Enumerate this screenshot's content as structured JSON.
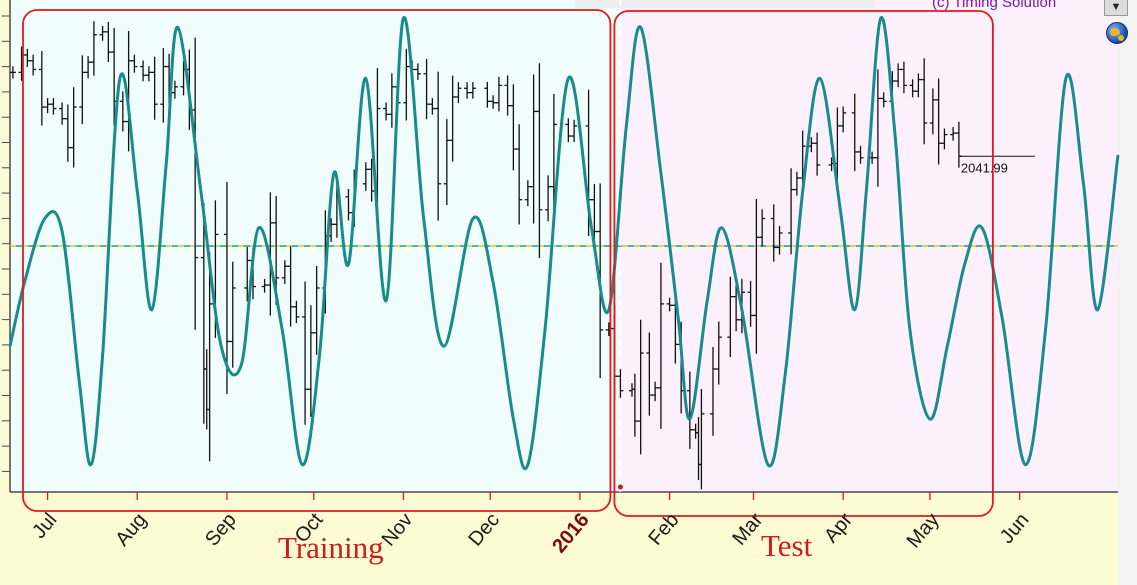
{
  "app": {
    "credit": "(c) Timing Solution",
    "dropdown_glyph": "▼",
    "globe_icon": "globe-icon"
  },
  "colors": {
    "training_bg": "#f1fcfc",
    "test_bg": "#fcf0fc",
    "future_bg": "#fcf0fc",
    "wave": "#188c8c",
    "price_bars": "#111111",
    "box": "#e0191d",
    "zero_line_a": "#d8c81c",
    "zero_line_b": "#1a9a9a",
    "axis": "#4a4a4a"
  },
  "annotations": {
    "training_label": "Training",
    "test_label": "Test",
    "last_price_label": "2041.99"
  },
  "chart_data": {
    "type": "line",
    "title": "",
    "xlabel": "",
    "ylabel": "",
    "x_range": [
      "2015-06-18",
      "2016-07-05"
    ],
    "split_date": "2016-01-15",
    "x_ticks": [
      {
        "date": "2015-07-01",
        "label": "Jul",
        "year": false
      },
      {
        "date": "2015-08-01",
        "label": "Aug",
        "year": false
      },
      {
        "date": "2015-09-01",
        "label": "Sep",
        "year": false
      },
      {
        "date": "2015-10-01",
        "label": "Oct",
        "year": false
      },
      {
        "date": "2015-11-01",
        "label": "Nov",
        "year": false
      },
      {
        "date": "2015-12-01",
        "label": "Dec",
        "year": false
      },
      {
        "date": "2016-01-01",
        "label": "2016",
        "year": true
      },
      {
        "date": "2016-02-01",
        "label": "Feb",
        "year": false
      },
      {
        "date": "2016-03-01",
        "label": "Mar",
        "year": false
      },
      {
        "date": "2016-04-01",
        "label": "Apr",
        "year": false
      },
      {
        "date": "2016-05-01",
        "label": "May",
        "year": false
      },
      {
        "date": "2016-06-01",
        "label": "Jun",
        "year": false
      }
    ],
    "wave_range": [
      -1.35,
      1.35
    ],
    "series": [
      {
        "type": "line",
        "points": [
          [
            "2015-06-18",
            -0.55
          ],
          [
            "2015-06-23",
            -0.2
          ],
          [
            "2015-06-30",
            0.15
          ],
          [
            "2015-07-06",
            0.08
          ],
          [
            "2015-07-12",
            -0.75
          ],
          [
            "2015-07-16",
            -1.2
          ],
          [
            "2015-07-20",
            -0.6
          ],
          [
            "2015-07-26",
            0.92
          ],
          [
            "2015-08-01",
            0.3
          ],
          [
            "2015-08-06",
            -0.35
          ],
          [
            "2015-08-11",
            0.45
          ],
          [
            "2015-08-15",
            1.2
          ],
          [
            "2015-08-23",
            0.3
          ],
          [
            "2015-08-30",
            -0.55
          ],
          [
            "2015-09-06",
            -0.65
          ],
          [
            "2015-09-12",
            0.1
          ],
          [
            "2015-09-20",
            -0.45
          ],
          [
            "2015-09-27",
            -1.2
          ],
          [
            "2015-10-03",
            -0.6
          ],
          [
            "2015-10-08",
            0.4
          ],
          [
            "2015-10-13",
            -0.1
          ],
          [
            "2015-10-19",
            0.92
          ],
          [
            "2015-10-26",
            -0.3
          ],
          [
            "2015-11-01",
            1.25
          ],
          [
            "2015-11-08",
            0.15
          ],
          [
            "2015-11-15",
            -0.55
          ],
          [
            "2015-11-25",
            0.15
          ],
          [
            "2015-12-02",
            -0.2
          ],
          [
            "2015-12-09",
            -0.95
          ],
          [
            "2015-12-14",
            -1.2
          ],
          [
            "2015-12-20",
            -0.45
          ],
          [
            "2015-12-28",
            0.92
          ],
          [
            "2016-01-05",
            0.1
          ],
          [
            "2016-01-11",
            -0.35
          ],
          [
            "2016-01-17",
            0.65
          ],
          [
            "2016-01-22",
            1.2
          ],
          [
            "2016-01-29",
            0.4
          ],
          [
            "2016-02-04",
            -0.4
          ],
          [
            "2016-02-08",
            -0.95
          ],
          [
            "2016-02-14",
            -0.3
          ],
          [
            "2016-02-19",
            0.1
          ],
          [
            "2016-02-26",
            -0.35
          ],
          [
            "2016-03-06",
            -1.2
          ],
          [
            "2016-03-12",
            -0.7
          ],
          [
            "2016-03-18",
            0.3
          ],
          [
            "2016-03-24",
            0.92
          ],
          [
            "2016-03-31",
            0.2
          ],
          [
            "2016-04-05",
            -0.35
          ],
          [
            "2016-04-09",
            0.3
          ],
          [
            "2016-04-14",
            1.25
          ],
          [
            "2016-04-19",
            0.6
          ],
          [
            "2016-04-24",
            -0.45
          ],
          [
            "2016-05-01",
            -0.95
          ],
          [
            "2016-05-07",
            -0.55
          ],
          [
            "2016-05-13",
            -0.1
          ],
          [
            "2016-05-19",
            0.1
          ],
          [
            "2016-05-26",
            -0.4
          ],
          [
            "2016-06-03",
            -1.2
          ],
          [
            "2016-06-10",
            -0.45
          ],
          [
            "2016-06-17",
            0.92
          ],
          [
            "2016-06-23",
            0.35
          ],
          [
            "2016-06-28",
            -0.35
          ],
          [
            "2016-07-05",
            0.5
          ]
        ]
      },
      {
        "type": "ohlc",
        "price_range": [
          1810,
          2150
        ],
        "points": [
          [
            "2015-06-19",
            2100
          ],
          [
            "2015-06-22",
            2112
          ],
          [
            "2015-06-24",
            2108
          ],
          [
            "2015-06-26",
            2102
          ],
          [
            "2015-06-29",
            2076
          ],
          [
            "2015-07-01",
            2078
          ],
          [
            "2015-07-03",
            2075
          ],
          [
            "2015-07-06",
            2068
          ],
          [
            "2015-07-08",
            2048
          ],
          [
            "2015-07-10",
            2076
          ],
          [
            "2015-07-13",
            2100
          ],
          [
            "2015-07-15",
            2107
          ],
          [
            "2015-07-17",
            2126
          ],
          [
            "2015-07-20",
            2128
          ],
          [
            "2015-07-22",
            2114
          ],
          [
            "2015-07-24",
            2080
          ],
          [
            "2015-07-27",
            2066
          ],
          [
            "2015-07-29",
            2108
          ],
          [
            "2015-07-31",
            2104
          ],
          [
            "2015-08-03",
            2098
          ],
          [
            "2015-08-05",
            2100
          ],
          [
            "2015-08-07",
            2078
          ],
          [
            "2015-08-10",
            2104
          ],
          [
            "2015-08-12",
            2086
          ],
          [
            "2015-08-14",
            2090
          ],
          [
            "2015-08-17",
            2102
          ],
          [
            "2015-08-19",
            2074
          ],
          [
            "2015-08-21",
            1972
          ],
          [
            "2015-08-24",
            1895
          ],
          [
            "2015-08-25",
            1867
          ],
          [
            "2015-08-26",
            1940
          ],
          [
            "2015-08-28",
            1988
          ],
          [
            "2015-09-01",
            1914
          ],
          [
            "2015-09-03",
            1951
          ],
          [
            "2015-09-08",
            1970
          ],
          [
            "2015-09-10",
            1952
          ],
          [
            "2015-09-14",
            1953
          ],
          [
            "2015-09-16",
            1996
          ],
          [
            "2015-09-18",
            1958
          ],
          [
            "2015-09-21",
            1966
          ],
          [
            "2015-09-23",
            1938
          ],
          [
            "2015-09-25",
            1931
          ],
          [
            "2015-09-28",
            1881
          ],
          [
            "2015-09-30",
            1920
          ],
          [
            "2015-10-02",
            1951
          ],
          [
            "2015-10-05",
            1987
          ],
          [
            "2015-10-07",
            1995
          ],
          [
            "2015-10-09",
            2014
          ],
          [
            "2015-10-13",
            2003
          ],
          [
            "2015-10-15",
            2023
          ],
          [
            "2015-10-19",
            2033
          ],
          [
            "2015-10-21",
            2018
          ],
          [
            "2015-10-23",
            2075
          ],
          [
            "2015-10-26",
            2071
          ],
          [
            "2015-10-28",
            2090
          ],
          [
            "2015-10-30",
            2079
          ],
          [
            "2015-11-02",
            2104
          ],
          [
            "2015-11-04",
            2102
          ],
          [
            "2015-11-06",
            2099
          ],
          [
            "2015-11-09",
            2078
          ],
          [
            "2015-11-11",
            2075
          ],
          [
            "2015-11-13",
            2023
          ],
          [
            "2015-11-16",
            2053
          ],
          [
            "2015-11-18",
            2083
          ],
          [
            "2015-11-20",
            2089
          ],
          [
            "2015-11-23",
            2086
          ],
          [
            "2015-11-25",
            2089
          ],
          [
            "2015-11-30",
            2080
          ],
          [
            "2015-12-02",
            2079
          ],
          [
            "2015-12-04",
            2091
          ],
          [
            "2015-12-07",
            2077
          ],
          [
            "2015-12-09",
            2047
          ],
          [
            "2015-12-11",
            2012
          ],
          [
            "2015-12-14",
            2021
          ],
          [
            "2015-12-16",
            2073
          ],
          [
            "2015-12-18",
            2005
          ],
          [
            "2015-12-21",
            2021
          ],
          [
            "2015-12-23",
            2064
          ],
          [
            "2015-12-28",
            2056
          ],
          [
            "2015-12-30",
            2063
          ],
          [
            "2016-01-04",
            2012
          ],
          [
            "2016-01-06",
            1990
          ],
          [
            "2016-01-08",
            1922
          ],
          [
            "2016-01-11",
            1923
          ],
          [
            "2016-01-13",
            1890
          ],
          [
            "2016-01-15",
            1880
          ],
          [
            "2016-01-19",
            1881
          ],
          [
            "2016-01-20",
            1859
          ],
          [
            "2016-01-22",
            1906
          ],
          [
            "2016-01-25",
            1877
          ],
          [
            "2016-01-27",
            1882
          ],
          [
            "2016-01-29",
            1940
          ],
          [
            "2016-02-01",
            1939
          ],
          [
            "2016-02-03",
            1912
          ],
          [
            "2016-02-05",
            1880
          ],
          [
            "2016-02-08",
            1853
          ],
          [
            "2016-02-10",
            1851
          ],
          [
            "2016-02-11",
            1829
          ],
          [
            "2016-02-12",
            1864
          ],
          [
            "2016-02-16",
            1895
          ],
          [
            "2016-02-18",
            1917
          ],
          [
            "2016-02-22",
            1945
          ],
          [
            "2016-02-24",
            1929
          ],
          [
            "2016-02-26",
            1948
          ],
          [
            "2016-02-29",
            1932
          ],
          [
            "2016-03-02",
            1986
          ],
          [
            "2016-03-04",
            1999
          ],
          [
            "2016-03-08",
            1979
          ],
          [
            "2016-03-10",
            1989
          ],
          [
            "2016-03-14",
            2019
          ],
          [
            "2016-03-16",
            2027
          ],
          [
            "2016-03-18",
            2049
          ],
          [
            "2016-03-21",
            2051
          ],
          [
            "2016-03-23",
            2036
          ],
          [
            "2016-03-28",
            2037
          ],
          [
            "2016-03-30",
            2063
          ],
          [
            "2016-04-01",
            2072
          ],
          [
            "2016-04-05",
            2045
          ],
          [
            "2016-04-07",
            2041
          ],
          [
            "2016-04-11",
            2041
          ],
          [
            "2016-04-13",
            2082
          ],
          [
            "2016-04-15",
            2080
          ],
          [
            "2016-04-18",
            2094
          ],
          [
            "2016-04-20",
            2102
          ],
          [
            "2016-04-22",
            2091
          ],
          [
            "2016-04-25",
            2087
          ],
          [
            "2016-04-27",
            2095
          ],
          [
            "2016-04-29",
            2065
          ],
          [
            "2016-05-02",
            2081
          ],
          [
            "2016-05-04",
            2051
          ],
          [
            "2016-05-06",
            2057
          ],
          [
            "2016-05-09",
            2058
          ],
          [
            "2016-05-11",
            2042
          ]
        ]
      }
    ]
  }
}
